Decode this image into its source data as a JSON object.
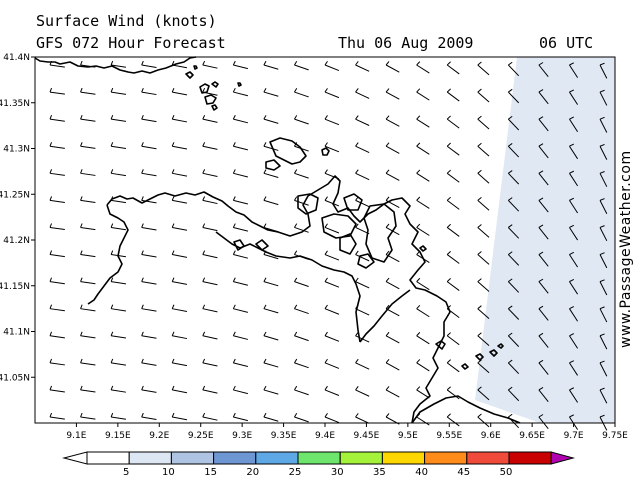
{
  "header": {
    "title": "Surface Wind (knots)",
    "forecast": "GFS 072 Hour Forecast",
    "date": "Thu 06 Aug 2009",
    "time": "06 UTC"
  },
  "credit": "www.PassageWeather.com",
  "map": {
    "lon_range": [
      9.05,
      9.75
    ],
    "lat_range": [
      41.0,
      41.4
    ],
    "lat_ticks": [
      "41.4N",
      "41.35N",
      "41.3N",
      "41.25N",
      "41.2N",
      "41.15N",
      "41.1N",
      "41.05N"
    ],
    "lat_tick_values": [
      41.4,
      41.35,
      41.3,
      41.25,
      41.2,
      41.15,
      41.1,
      41.05
    ],
    "lon_ticks": [
      "9.1E",
      "9.15E",
      "9.2E",
      "9.25E",
      "9.3E",
      "9.35E",
      "9.4E",
      "9.45E",
      "9.5E",
      "9.55E",
      "9.6E",
      "9.65E",
      "9.7E",
      "9.75E"
    ],
    "lon_tick_values": [
      9.1,
      9.15,
      9.2,
      9.25,
      9.3,
      9.35,
      9.4,
      9.45,
      9.5,
      9.55,
      9.6,
      9.65,
      9.7,
      9.75
    ],
    "wind_regions": [
      {
        "description": "west",
        "speed_knots": 3,
        "color": "#ffffff"
      },
      {
        "description": "east",
        "speed_knots": 6,
        "color": "#e0e8f4"
      }
    ],
    "wind_barbs": {
      "rows": 14,
      "cols": 19,
      "direction": "westerly",
      "speed_knots": 5
    }
  },
  "legend": {
    "labels": [
      "5",
      "10",
      "15",
      "20",
      "25",
      "30",
      "35",
      "40",
      "45",
      "50"
    ],
    "colors": [
      "#ffffff",
      "#dde6f3",
      "#aec4e2",
      "#6e96d2",
      "#5fa8e6",
      "#6ee66e",
      "#a4f23a",
      "#ffd700",
      "#ff8c1a",
      "#f04a3a",
      "#c80000",
      "#b000b0"
    ]
  }
}
